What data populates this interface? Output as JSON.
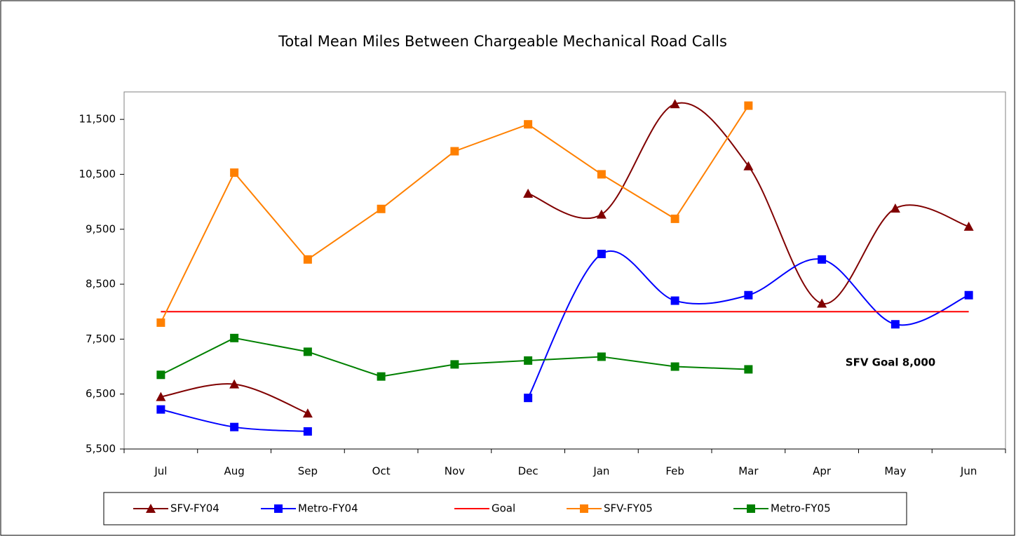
{
  "chart_data": {
    "type": "line",
    "title": "Total Mean Miles Between Chargeable Mechanical Road Calls",
    "categories": [
      "Jul",
      "Aug",
      "Sep",
      "Oct",
      "Nov",
      "Dec",
      "Jan",
      "Feb",
      "Mar",
      "Apr",
      "May",
      "Jun"
    ],
    "ylim": [
      5500,
      12000
    ],
    "yticks": [
      {
        "value": 5500,
        "label": "5,500"
      },
      {
        "value": 6500,
        "label": "6,500"
      },
      {
        "value": 7500,
        "label": "7,500"
      },
      {
        "value": 8500,
        "label": "8,500"
      },
      {
        "value": 9500,
        "label": "9,500"
      },
      {
        "value": 10500,
        "label": "10,500"
      },
      {
        "value": 11500,
        "label": "11,500"
      }
    ],
    "legend": "bottom",
    "annotations": [
      "SFV Goal 8,000"
    ],
    "series": [
      {
        "name": "SFV-FY04",
        "color": "#800000",
        "marker": "triangle",
        "smooth": true,
        "values": [
          6450,
          6680,
          6150,
          null,
          null,
          10150,
          9770,
          11780,
          10650,
          8150,
          9880,
          9550
        ]
      },
      {
        "name": "Metro-FY04",
        "color": "#0000ff",
        "marker": "square",
        "smooth": true,
        "values": [
          6220,
          5900,
          5820,
          null,
          null,
          6430,
          9050,
          8200,
          8300,
          8950,
          7770,
          8300
        ]
      },
      {
        "name": "Goal",
        "color": "#ff0000",
        "marker": "none",
        "smooth": false,
        "values": [
          8000,
          8000,
          8000,
          8000,
          8000,
          8000,
          8000,
          8000,
          8000,
          8000,
          8000,
          8000
        ]
      },
      {
        "name": "SFV-FY05",
        "color": "#ff8000",
        "marker": "square",
        "smooth": false,
        "values": [
          7800,
          10530,
          8950,
          9870,
          10920,
          11410,
          10500,
          9690,
          11750,
          null,
          null,
          null
        ]
      },
      {
        "name": "Metro-FY05",
        "color": "#008000",
        "marker": "square",
        "smooth": false,
        "values": [
          6850,
          7520,
          7270,
          6820,
          7040,
          7110,
          7180,
          7000,
          6950,
          null,
          null,
          null
        ]
      }
    ]
  }
}
